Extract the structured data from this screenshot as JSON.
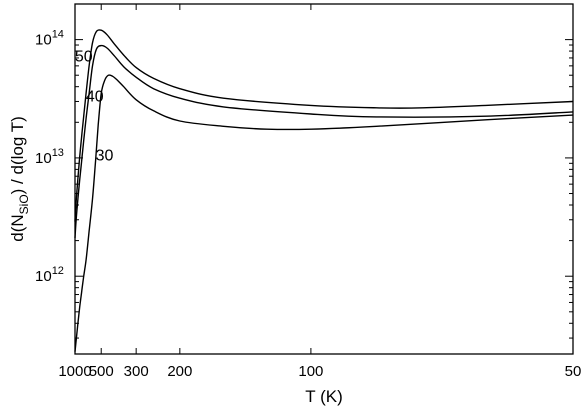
{
  "chart_data": {
    "type": "line",
    "title": "",
    "xlabel": "T (K)",
    "ylabel": {
      "prefix": "d(N",
      "subscript": "SiO",
      "suffix": ") / d(log T)"
    },
    "x_scale": "reciprocal",
    "y_scale": "log",
    "xlim": [
      1000,
      50
    ],
    "ylim": [
      220000000000.0,
      200000000000000.0
    ],
    "x_ticks": [
      {
        "value": 1000,
        "label": "1000"
      },
      {
        "value": 500,
        "label": "500"
      },
      {
        "value": 300,
        "label": "300"
      },
      {
        "value": 200,
        "label": "200"
      },
      {
        "value": 100,
        "label": "100"
      },
      {
        "value": 50,
        "label": "50"
      }
    ],
    "y_ticks": [
      {
        "value": 1000000000000.0,
        "base": "10",
        "exp": "12"
      },
      {
        "value": 10000000000000.0,
        "base": "10",
        "exp": "13"
      },
      {
        "value": 100000000000000.0,
        "base": "10",
        "exp": "14"
      }
    ],
    "grid": false,
    "legend": "none",
    "series": [
      {
        "label": "50",
        "label_at": {
          "T": 750,
          "y": 65000000000000.0
        },
        "points": [
          [
            1000,
            2900000000000.0
          ],
          [
            950,
            4600000000000.0
          ],
          [
            900,
            6700000000000.0
          ],
          [
            850,
            10000000000000.0
          ],
          [
            800,
            15000000000000.0
          ],
          [
            750,
            22500000000000.0
          ],
          [
            700,
            36000000000000.0
          ],
          [
            650,
            60000000000000.0
          ],
          [
            600,
            94000000000000.0
          ],
          [
            550,
            117000000000000.0
          ],
          [
            500,
            120000000000000.0
          ],
          [
            450,
            110000000000000.0
          ],
          [
            400,
            92000000000000.0
          ],
          [
            350,
            74000000000000.0
          ],
          [
            300,
            58000000000000.0
          ],
          [
            250,
            47000000000000.0
          ],
          [
            200,
            38500000000000.0
          ],
          [
            150,
            32000000000000.0
          ],
          [
            100,
            27800000000000.0
          ],
          [
            80,
            26500000000000.0
          ],
          [
            70,
            26500000000000.0
          ],
          [
            60,
            27800000000000.0
          ],
          [
            50,
            30000000000000.0
          ]
        ]
      },
      {
        "label": "40",
        "label_at": {
          "T": 570,
          "y": 30000000000000.0
        },
        "points": [
          [
            1000,
            2100000000000.0
          ],
          [
            950,
            3200000000000.0
          ],
          [
            900,
            4500000000000.0
          ],
          [
            850,
            6400000000000.0
          ],
          [
            800,
            9300000000000.0
          ],
          [
            750,
            14000000000000.0
          ],
          [
            700,
            22000000000000.0
          ],
          [
            650,
            35000000000000.0
          ],
          [
            600,
            60000000000000.0
          ],
          [
            550,
            83000000000000.0
          ],
          [
            500,
            89000000000000.0
          ],
          [
            450,
            85000000000000.0
          ],
          [
            400,
            73000000000000.0
          ],
          [
            350,
            59000000000000.0
          ],
          [
            300,
            48000000000000.0
          ],
          [
            250,
            38500000000000.0
          ],
          [
            200,
            32000000000000.0
          ],
          [
            150,
            27000000000000.0
          ],
          [
            100,
            23500000000000.0
          ],
          [
            80,
            22200000000000.0
          ],
          [
            60,
            22500000000000.0
          ],
          [
            50,
            24500000000000.0
          ]
        ]
      },
      {
        "label": "30",
        "label_at": {
          "T": 470,
          "y": 9500000000000.0
        },
        "points": [
          [
            1000,
            230000000000.0
          ],
          [
            950,
            300000000000.0
          ],
          [
            900,
            400000000000.0
          ],
          [
            850,
            540000000000.0
          ],
          [
            800,
            730000000000.0
          ],
          [
            750,
            1000000000000.0
          ],
          [
            700,
            1400000000000.0
          ],
          [
            650,
            2400000000000.0
          ],
          [
            600,
            4500000000000.0
          ],
          [
            560,
            9500000000000.0
          ],
          [
            530,
            19000000000000.0
          ],
          [
            500,
            35000000000000.0
          ],
          [
            470,
            45000000000000.0
          ],
          [
            440,
            50000000000000.0
          ],
          [
            410,
            49000000000000.0
          ],
          [
            380,
            45000000000000.0
          ],
          [
            350,
            40000000000000.0
          ],
          [
            300,
            31000000000000.0
          ],
          [
            250,
            25000000000000.0
          ],
          [
            200,
            20500000000000.0
          ],
          [
            150,
            18500000000000.0
          ],
          [
            120,
            17500000000000.0
          ],
          [
            100,
            17500000000000.0
          ],
          [
            80,
            18500000000000.0
          ],
          [
            60,
            21000000000000.0
          ],
          [
            50,
            23000000000000.0
          ]
        ]
      }
    ]
  }
}
